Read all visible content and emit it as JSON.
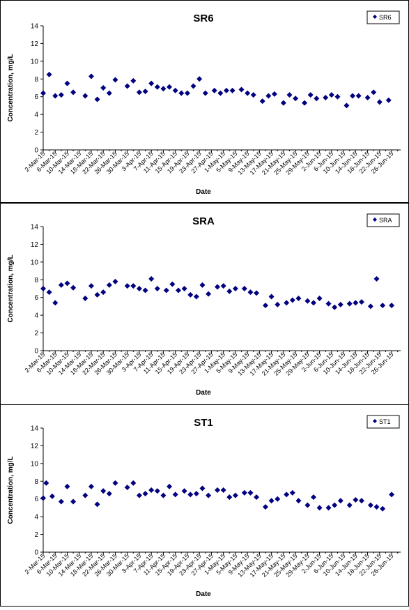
{
  "chart_data": [
    {
      "type": "scatter",
      "title": "SR6",
      "xlabel": "Date",
      "ylabel": "Concentration, mg/L",
      "ylim": [
        0,
        14
      ],
      "yticks": [
        0,
        2,
        4,
        6,
        8,
        10,
        12,
        14
      ],
      "xlim": [
        "2015-03-02",
        "2015-06-29"
      ],
      "xtick_labels": [
        "2-Mar-15",
        "6-Mar-15",
        "10-Mar-15",
        "14-Mar-15",
        "18-Mar-15",
        "22-Mar-15",
        "26-Mar-15",
        "30-Mar-15",
        "3-Apr-15",
        "7-Apr-15",
        "11-Apr-15",
        "15-Apr-15",
        "19-Apr-15",
        "23-Apr-15",
        "27-Apr-15",
        "1-May-15",
        "5-May-15",
        "9-May-15",
        "13-May-15",
        "17-May-15",
        "21-May-15",
        "25-May-15",
        "29-May-15",
        "2-Jun-15",
        "6-Jun-15",
        "10-Jun-15",
        "14-Jun-15",
        "18-Jun-15",
        "22-Jun-15",
        "26-Jun-15"
      ],
      "legend": "top-right",
      "color": "#000080",
      "series": [
        {
          "name": "SR6",
          "points": [
            [
              "2015-03-02",
              6.4
            ],
            [
              "2015-03-04",
              8.5
            ],
            [
              "2015-03-06",
              6.1
            ],
            [
              "2015-03-08",
              6.2
            ],
            [
              "2015-03-10",
              7.5
            ],
            [
              "2015-03-12",
              6.5
            ],
            [
              "2015-03-16",
              6.1
            ],
            [
              "2015-03-18",
              8.3
            ],
            [
              "2015-03-20",
              5.7
            ],
            [
              "2015-03-22",
              7.0
            ],
            [
              "2015-03-24",
              6.4
            ],
            [
              "2015-03-26",
              7.9
            ],
            [
              "2015-03-30",
              7.2
            ],
            [
              "2015-04-01",
              7.8
            ],
            [
              "2015-04-03",
              6.5
            ],
            [
              "2015-04-05",
              6.6
            ],
            [
              "2015-04-07",
              7.5
            ],
            [
              "2015-04-09",
              7.1
            ],
            [
              "2015-04-11",
              6.9
            ],
            [
              "2015-04-13",
              7.1
            ],
            [
              "2015-04-15",
              6.7
            ],
            [
              "2015-04-17",
              6.4
            ],
            [
              "2015-04-19",
              6.4
            ],
            [
              "2015-04-21",
              7.2
            ],
            [
              "2015-04-23",
              8.0
            ],
            [
              "2015-04-25",
              6.4
            ],
            [
              "2015-04-28",
              6.7
            ],
            [
              "2015-04-30",
              6.4
            ],
            [
              "2015-05-02",
              6.7
            ],
            [
              "2015-05-04",
              6.7
            ],
            [
              "2015-05-07",
              6.8
            ],
            [
              "2015-05-09",
              6.4
            ],
            [
              "2015-05-11",
              6.2
            ],
            [
              "2015-05-14",
              5.5
            ],
            [
              "2015-05-16",
              6.1
            ],
            [
              "2015-05-18",
              6.3
            ],
            [
              "2015-05-21",
              5.3
            ],
            [
              "2015-05-23",
              6.2
            ],
            [
              "2015-05-25",
              5.8
            ],
            [
              "2015-05-28",
              5.3
            ],
            [
              "2015-05-30",
              6.2
            ],
            [
              "2015-06-01",
              5.8
            ],
            [
              "2015-06-04",
              5.9
            ],
            [
              "2015-06-06",
              6.2
            ],
            [
              "2015-06-08",
              6.0
            ],
            [
              "2015-06-11",
              5.0
            ],
            [
              "2015-06-13",
              6.1
            ],
            [
              "2015-06-15",
              6.1
            ],
            [
              "2015-06-18",
              5.9
            ],
            [
              "2015-06-20",
              6.5
            ],
            [
              "2015-06-22",
              5.4
            ],
            [
              "2015-06-25",
              5.6
            ]
          ]
        }
      ]
    },
    {
      "type": "scatter",
      "title": "SRA",
      "xlabel": "Date",
      "ylabel": "Concentration, mg/L",
      "ylim": [
        0,
        14
      ],
      "yticks": [
        0,
        2,
        4,
        6,
        8,
        10,
        12,
        14
      ],
      "xlim": [
        "2015-03-02",
        "2015-06-29"
      ],
      "xtick_labels": [
        "2-Mar-15",
        "6-Mar-15",
        "10-Mar-15",
        "14-Mar-15",
        "18-Mar-15",
        "22-Mar-15",
        "26-Mar-15",
        "30-Mar-15",
        "3-Apr-15",
        "7-Apr-15",
        "11-Apr-15",
        "15-Apr-15",
        "19-Apr-15",
        "23-Apr-15",
        "27-Apr-15",
        "1-May-15",
        "5-May-15",
        "9-May-15",
        "13-May-15",
        "17-May-15",
        "21-May-15",
        "25-May-15",
        "29-May-15",
        "2-Jun-15",
        "6-Jun-15",
        "10-Jun-15",
        "14-Jun-15",
        "18-Jun-15",
        "22-Jun-15",
        "26-Jun-15"
      ],
      "legend": "top-right",
      "color": "#000080",
      "series": [
        {
          "name": "SRA",
          "points": [
            [
              "2015-03-02",
              7.0
            ],
            [
              "2015-03-04",
              6.6
            ],
            [
              "2015-03-06",
              5.4
            ],
            [
              "2015-03-08",
              7.4
            ],
            [
              "2015-03-10",
              7.6
            ],
            [
              "2015-03-12",
              7.1
            ],
            [
              "2015-03-16",
              5.9
            ],
            [
              "2015-03-18",
              7.3
            ],
            [
              "2015-03-20",
              6.3
            ],
            [
              "2015-03-22",
              6.6
            ],
            [
              "2015-03-24",
              7.4
            ],
            [
              "2015-03-26",
              7.8
            ],
            [
              "2015-03-30",
              7.3
            ],
            [
              "2015-04-01",
              7.3
            ],
            [
              "2015-04-03",
              7.0
            ],
            [
              "2015-04-05",
              6.8
            ],
            [
              "2015-04-07",
              8.1
            ],
            [
              "2015-04-09",
              7.0
            ],
            [
              "2015-04-12",
              6.8
            ],
            [
              "2015-04-14",
              7.5
            ],
            [
              "2015-04-16",
              6.8
            ],
            [
              "2015-04-18",
              7.0
            ],
            [
              "2015-04-20",
              6.3
            ],
            [
              "2015-04-22",
              6.1
            ],
            [
              "2015-04-24",
              7.4
            ],
            [
              "2015-04-26",
              6.4
            ],
            [
              "2015-04-29",
              7.2
            ],
            [
              "2015-05-01",
              7.3
            ],
            [
              "2015-05-03",
              6.7
            ],
            [
              "2015-05-05",
              7.0
            ],
            [
              "2015-05-08",
              7.0
            ],
            [
              "2015-05-10",
              6.6
            ],
            [
              "2015-05-12",
              6.5
            ],
            [
              "2015-05-15",
              5.1
            ],
            [
              "2015-05-17",
              6.1
            ],
            [
              "2015-05-19",
              5.2
            ],
            [
              "2015-05-22",
              5.4
            ],
            [
              "2015-05-24",
              5.7
            ],
            [
              "2015-05-26",
              5.9
            ],
            [
              "2015-05-29",
              5.6
            ],
            [
              "2015-05-31",
              5.4
            ],
            [
              "2015-06-02",
              5.9
            ],
            [
              "2015-06-05",
              5.3
            ],
            [
              "2015-06-07",
              4.9
            ],
            [
              "2015-06-09",
              5.2
            ],
            [
              "2015-06-12",
              5.3
            ],
            [
              "2015-06-14",
              5.4
            ],
            [
              "2015-06-16",
              5.5
            ],
            [
              "2015-06-19",
              5.0
            ],
            [
              "2015-06-21",
              8.1
            ],
            [
              "2015-06-23",
              5.1
            ],
            [
              "2015-06-26",
              5.1
            ]
          ]
        }
      ]
    },
    {
      "type": "scatter",
      "title": "ST1",
      "xlabel": "Date",
      "ylabel": "Concentration, mg/L",
      "ylim": [
        0,
        14
      ],
      "yticks": [
        0,
        2,
        4,
        6,
        8,
        10,
        12,
        14
      ],
      "xlim": [
        "2015-03-02",
        "2015-06-29"
      ],
      "xtick_labels": [
        "2-Mar-15",
        "6-Mar-15",
        "10-Mar-15",
        "14-Mar-15",
        "18-Mar-15",
        "22-Mar-15",
        "26-Mar-15",
        "30-Mar-15",
        "3-Apr-15",
        "7-Apr-15",
        "11-Apr-15",
        "15-Apr-15",
        "19-Apr-15",
        "23-Apr-15",
        "27-Apr-15",
        "1-May-15",
        "5-May-15",
        "9-May-15",
        "13-May-15",
        "17-May-15",
        "21-May-15",
        "25-May-15",
        "29-May-15",
        "2-Jun-15",
        "6-Jun-15",
        "10-Jun-15",
        "14-Jun-15",
        "18-Jun-15",
        "22-Jun-15",
        "26-Jun-15"
      ],
      "legend": "top-right",
      "color": "#000080",
      "series": [
        {
          "name": "ST1",
          "points": [
            [
              "2015-03-02",
              6.1
            ],
            [
              "2015-03-03",
              7.8
            ],
            [
              "2015-03-05",
              6.3
            ],
            [
              "2015-03-08",
              5.7
            ],
            [
              "2015-03-10",
              7.4
            ],
            [
              "2015-03-12",
              5.7
            ],
            [
              "2015-03-16",
              6.4
            ],
            [
              "2015-03-18",
              7.4
            ],
            [
              "2015-03-20",
              5.4
            ],
            [
              "2015-03-22",
              6.9
            ],
            [
              "2015-03-24",
              6.6
            ],
            [
              "2015-03-26",
              7.8
            ],
            [
              "2015-03-30",
              7.3
            ],
            [
              "2015-04-01",
              7.8
            ],
            [
              "2015-04-03",
              6.4
            ],
            [
              "2015-04-05",
              6.6
            ],
            [
              "2015-04-07",
              7.0
            ],
            [
              "2015-04-09",
              6.9
            ],
            [
              "2015-04-11",
              6.4
            ],
            [
              "2015-04-13",
              7.4
            ],
            [
              "2015-04-15",
              6.5
            ],
            [
              "2015-04-18",
              6.9
            ],
            [
              "2015-04-20",
              6.5
            ],
            [
              "2015-04-22",
              6.6
            ],
            [
              "2015-04-24",
              7.2
            ],
            [
              "2015-04-26",
              6.4
            ],
            [
              "2015-04-29",
              7.0
            ],
            [
              "2015-05-01",
              7.0
            ],
            [
              "2015-05-03",
              6.2
            ],
            [
              "2015-05-05",
              6.4
            ],
            [
              "2015-05-08",
              6.7
            ],
            [
              "2015-05-10",
              6.7
            ],
            [
              "2015-05-12",
              6.2
            ],
            [
              "2015-05-15",
              5.1
            ],
            [
              "2015-05-17",
              5.8
            ],
            [
              "2015-05-19",
              6.0
            ],
            [
              "2015-05-22",
              6.5
            ],
            [
              "2015-05-24",
              6.7
            ],
            [
              "2015-05-26",
              5.8
            ],
            [
              "2015-05-29",
              5.3
            ],
            [
              "2015-05-31",
              6.2
            ],
            [
              "2015-06-02",
              5.0
            ],
            [
              "2015-06-05",
              5.0
            ],
            [
              "2015-06-07",
              5.3
            ],
            [
              "2015-06-09",
              5.8
            ],
            [
              "2015-06-12",
              5.3
            ],
            [
              "2015-06-14",
              5.9
            ],
            [
              "2015-06-16",
              5.8
            ],
            [
              "2015-06-19",
              5.3
            ],
            [
              "2015-06-21",
              5.1
            ],
            [
              "2015-06-23",
              4.9
            ],
            [
              "2015-06-26",
              6.5
            ]
          ]
        }
      ]
    }
  ]
}
